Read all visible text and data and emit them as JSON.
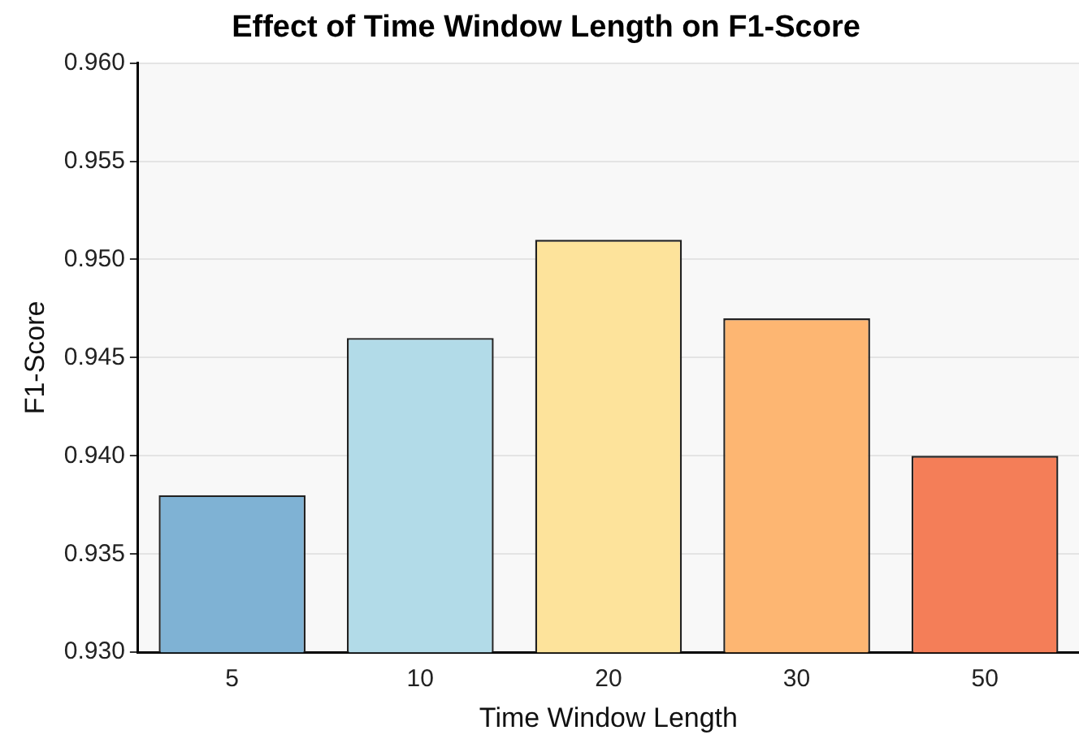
{
  "chart_data": {
    "type": "bar",
    "title": "Effect of Time Window Length on F1-Score",
    "xlabel": "Time Window Length",
    "ylabel": "F1-Score",
    "categories": [
      "5",
      "10",
      "20",
      "30",
      "50"
    ],
    "values": [
      0.938,
      0.946,
      0.951,
      0.947,
      0.94
    ],
    "colors": [
      "#7fb2d4",
      "#b2dbe8",
      "#fde39b",
      "#fdb672",
      "#f47e58"
    ],
    "ylim": [
      0.93,
      0.96
    ],
    "yticks": [
      {
        "value": 0.93,
        "label": "0.930"
      },
      {
        "value": 0.935,
        "label": "0.935"
      },
      {
        "value": 0.94,
        "label": "0.940"
      },
      {
        "value": 0.945,
        "label": "0.945"
      },
      {
        "value": 0.95,
        "label": "0.950"
      },
      {
        "value": 0.955,
        "label": "0.955"
      },
      {
        "value": 0.96,
        "label": "0.960"
      }
    ],
    "grid": "y",
    "legend": false
  }
}
